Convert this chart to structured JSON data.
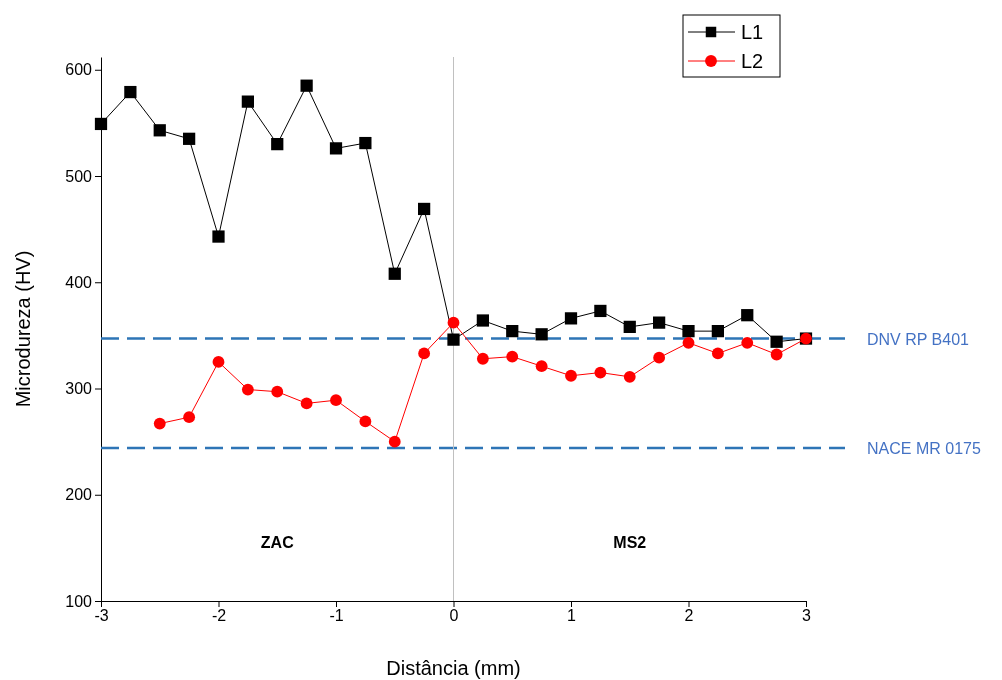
{
  "chart_data": {
    "type": "line",
    "xlabel": "Distância (mm)",
    "ylabel": "Microdureza (HV)",
    "x": [
      -3,
      -2.75,
      -2.5,
      -2.25,
      -2,
      -1.75,
      -1.5,
      -1.25,
      -1,
      -0.75,
      -0.5,
      -0.25,
      0,
      0.25,
      0.5,
      0.75,
      1,
      1.25,
      1.5,
      1.75,
      2,
      2.25,
      2.5,
      2.75,
      3
    ],
    "series": [
      {
        "name": "L1",
        "color": "#000000",
        "marker": "square",
        "values": [
          549,
          579,
          543,
          535,
          443,
          570,
          530,
          585,
          526,
          531,
          408,
          469,
          346,
          364,
          354,
          351,
          366,
          373,
          358,
          362,
          354,
          354,
          369,
          344,
          347
        ]
      },
      {
        "name": "L2",
        "color": "#ff0000",
        "marker": "circle",
        "values": [
          null,
          null,
          267,
          273,
          325,
          299,
          297,
          286,
          289,
          269,
          250,
          333,
          362,
          328,
          330,
          321,
          312,
          315,
          311,
          329,
          343,
          333,
          343,
          332,
          347
        ]
      }
    ],
    "xlim": [
      -3,
      3
    ],
    "xticks": [
      -3,
      -2,
      -1,
      0,
      1,
      2,
      3
    ],
    "ylim": [
      100,
      612
    ],
    "yticks": [
      100,
      200,
      300,
      400,
      500,
      600
    ],
    "ref_lines": [
      {
        "axis": "y",
        "value": 347,
        "label": "DNV RP B401",
        "color": "#2e75b6",
        "line_style": "dashed"
      },
      {
        "axis": "y",
        "value": 244,
        "label": "NACE MR 0175",
        "color": "#2e75b6",
        "line_style": "dashed"
      },
      {
        "axis": "x",
        "value": 0,
        "color": "#c0c0c0",
        "line_style": "solid"
      }
    ],
    "annotations": [
      "ZAC",
      "MS2"
    ],
    "legend": "top right",
    "grid": false,
    "line_style": "solid"
  }
}
